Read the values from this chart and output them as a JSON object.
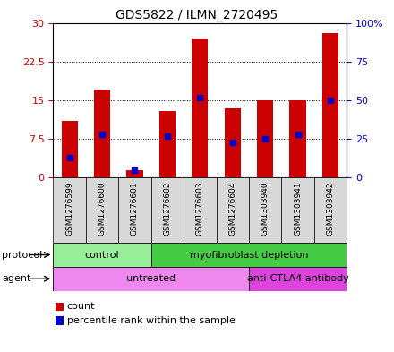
{
  "title": "GDS5822 / ILMN_2720495",
  "samples": [
    "GSM1276599",
    "GSM1276600",
    "GSM1276601",
    "GSM1276602",
    "GSM1276603",
    "GSM1276604",
    "GSM1303940",
    "GSM1303941",
    "GSM1303942"
  ],
  "counts": [
    11.0,
    17.0,
    1.5,
    13.0,
    27.0,
    13.5,
    15.0,
    15.0,
    28.0
  ],
  "percentiles": [
    13.0,
    28.0,
    5.0,
    27.0,
    52.0,
    23.0,
    25.0,
    28.0,
    50.0
  ],
  "ylim_left": [
    0,
    30
  ],
  "ylim_right": [
    0,
    100
  ],
  "yticks_left": [
    0,
    7.5,
    15,
    22.5,
    30
  ],
  "ytick_labels_left": [
    "0",
    "7.5",
    "15",
    "22.5",
    "30"
  ],
  "yticks_right": [
    0,
    25,
    50,
    75,
    100
  ],
  "ytick_labels_right": [
    "0",
    "25",
    "50",
    "75",
    "100%"
  ],
  "bar_color": "#cc0000",
  "dot_color": "#0000cc",
  "bg_color": "#ffffff",
  "protocol_groups": [
    {
      "label": "control",
      "start": 0,
      "end": 3,
      "color": "#99ee99"
    },
    {
      "label": "myofibroblast depletion",
      "start": 3,
      "end": 9,
      "color": "#44cc44"
    }
  ],
  "agent_groups": [
    {
      "label": "untreated",
      "start": 0,
      "end": 6,
      "color": "#ee88ee"
    },
    {
      "label": "anti-CTLA4 antibody",
      "start": 6,
      "end": 9,
      "color": "#dd44dd"
    }
  ],
  "legend_count_label": "count",
  "legend_percentile_label": "percentile rank within the sample",
  "tick_color_left": "#cc0000",
  "tick_color_right": "#0000cc",
  "label_left": "protocol",
  "label_agent": "agent"
}
